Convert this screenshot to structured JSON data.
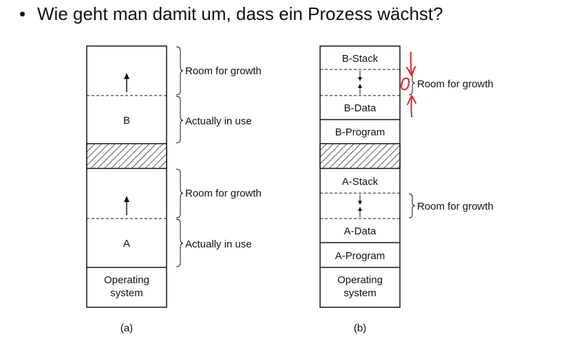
{
  "header": {
    "bullet": "•",
    "title": "Wie geht man damit um, dass ein Prozess wächst?"
  },
  "diagram_a": {
    "caption": "(a)",
    "segments": {
      "b_label": "B",
      "a_label": "A",
      "os_line1": "Operating",
      "os_line2": "system"
    },
    "annotations": {
      "b_growth": "Room for growth",
      "b_in_use": "Actually in use",
      "a_growth": "Room for growth",
      "a_in_use": "Actually in use"
    }
  },
  "diagram_b": {
    "caption": "(b)",
    "segments": {
      "b_stack": "B-Stack",
      "b_data": "B-Data",
      "b_program": "B-Program",
      "a_stack": "A-Stack",
      "a_data": "A-Data",
      "a_program": "A-Program",
      "os_line1": "Operating",
      "os_line2": "system"
    },
    "annotations": {
      "b_growth": "Room for growth",
      "a_growth": "Room for growth"
    }
  },
  "handwriting": {
    "mark": "0",
    "color": "#e8262b"
  }
}
